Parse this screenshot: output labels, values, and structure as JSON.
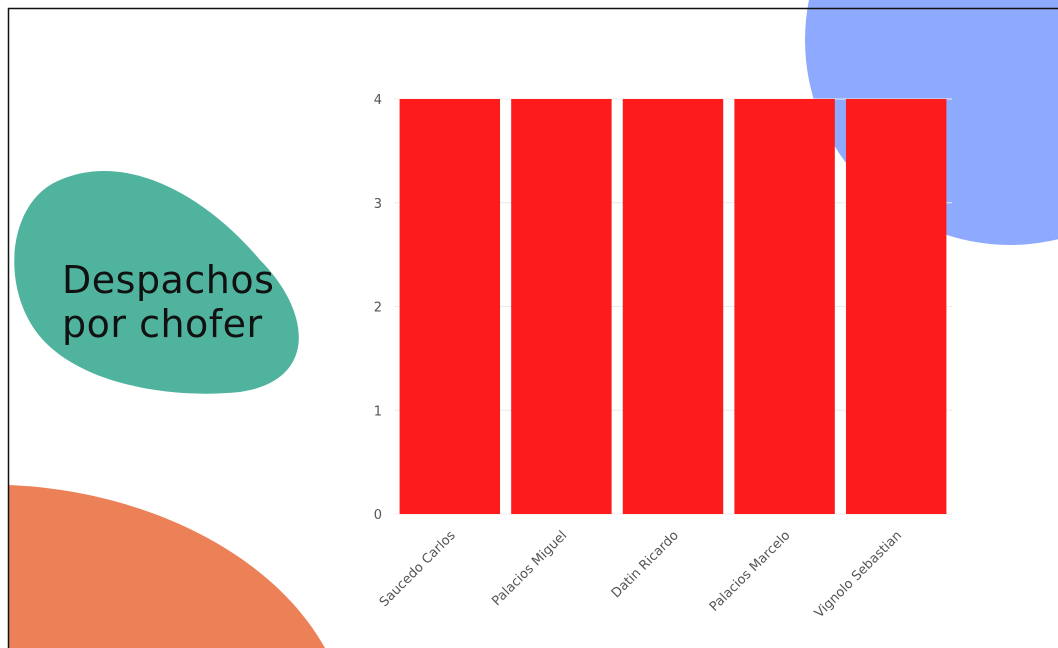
{
  "chart_data": {
    "type": "bar",
    "title": "Despachos por chofer",
    "categories": [
      "Saucedo Carlos",
      "Palacios Miguel",
      "Datin Ricardo",
      "Palacios Marcelo",
      "Vignolo Sebastian"
    ],
    "values": [
      4,
      4,
      4,
      4,
      4
    ],
    "color": "#fe1b1b",
    "ylim": [
      0,
      4
    ],
    "yticks": [
      0,
      1,
      2,
      3,
      4
    ],
    "grid": true
  }
}
